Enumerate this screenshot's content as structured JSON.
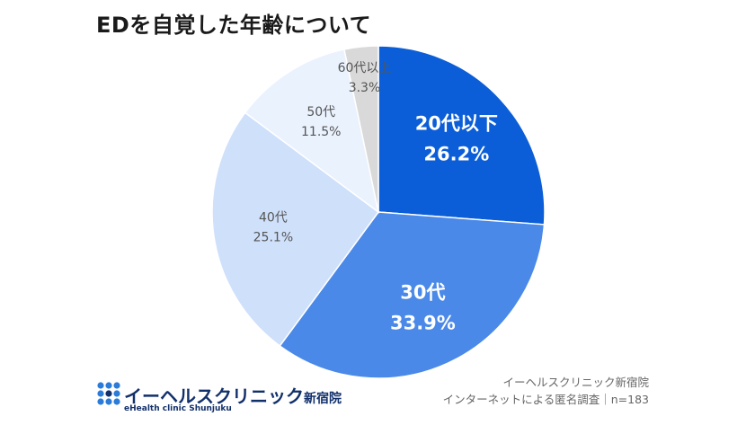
{
  "title": "EDを自覚した年齢について",
  "logo": {
    "name": "イーヘルスクリニック",
    "branch": "新宿院",
    "sub": "eHealth clinic Shunjuku"
  },
  "source": {
    "line1": "イーヘルスクリニック新宿院",
    "line2": "インターネットによる匿名調査｜n=183"
  },
  "chart_data": {
    "type": "pie",
    "title": "EDを自覚した年齢について",
    "unit": "%",
    "slices": [
      {
        "label": "20代以下",
        "value": 26.2,
        "display": "26.2%",
        "color": "#0b5ed7",
        "text_color": "#ffffff",
        "bold": true
      },
      {
        "label": "30代",
        "value": 33.9,
        "display": "33.9%",
        "color": "#4a89e8",
        "text_color": "#ffffff",
        "bold": true
      },
      {
        "label": "40代",
        "value": 25.1,
        "display": "25.1%",
        "color": "#cfe0fb",
        "text_color": "#555555",
        "bold": false
      },
      {
        "label": "50代",
        "value": 11.5,
        "display": "11.5%",
        "color": "#eaf2fe",
        "text_color": "#555555",
        "bold": false
      },
      {
        "label": "60代以上",
        "value": 3.3,
        "display": "3.3%",
        "color": "#d9d9d9",
        "text_color": "#555555",
        "bold": false
      }
    ]
  }
}
